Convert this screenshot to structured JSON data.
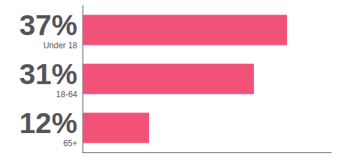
{
  "chart_data": {
    "type": "bar",
    "orientation": "horizontal",
    "categories": [
      "Under 18",
      "18-64",
      "65+"
    ],
    "values": [
      37,
      31,
      12
    ],
    "value_labels": [
      "37%",
      "31%",
      "12%"
    ],
    "data_labels": true,
    "color": "#f25278",
    "xlim": [
      0,
      45
    ],
    "tick_labels": "y",
    "grid": false
  }
}
